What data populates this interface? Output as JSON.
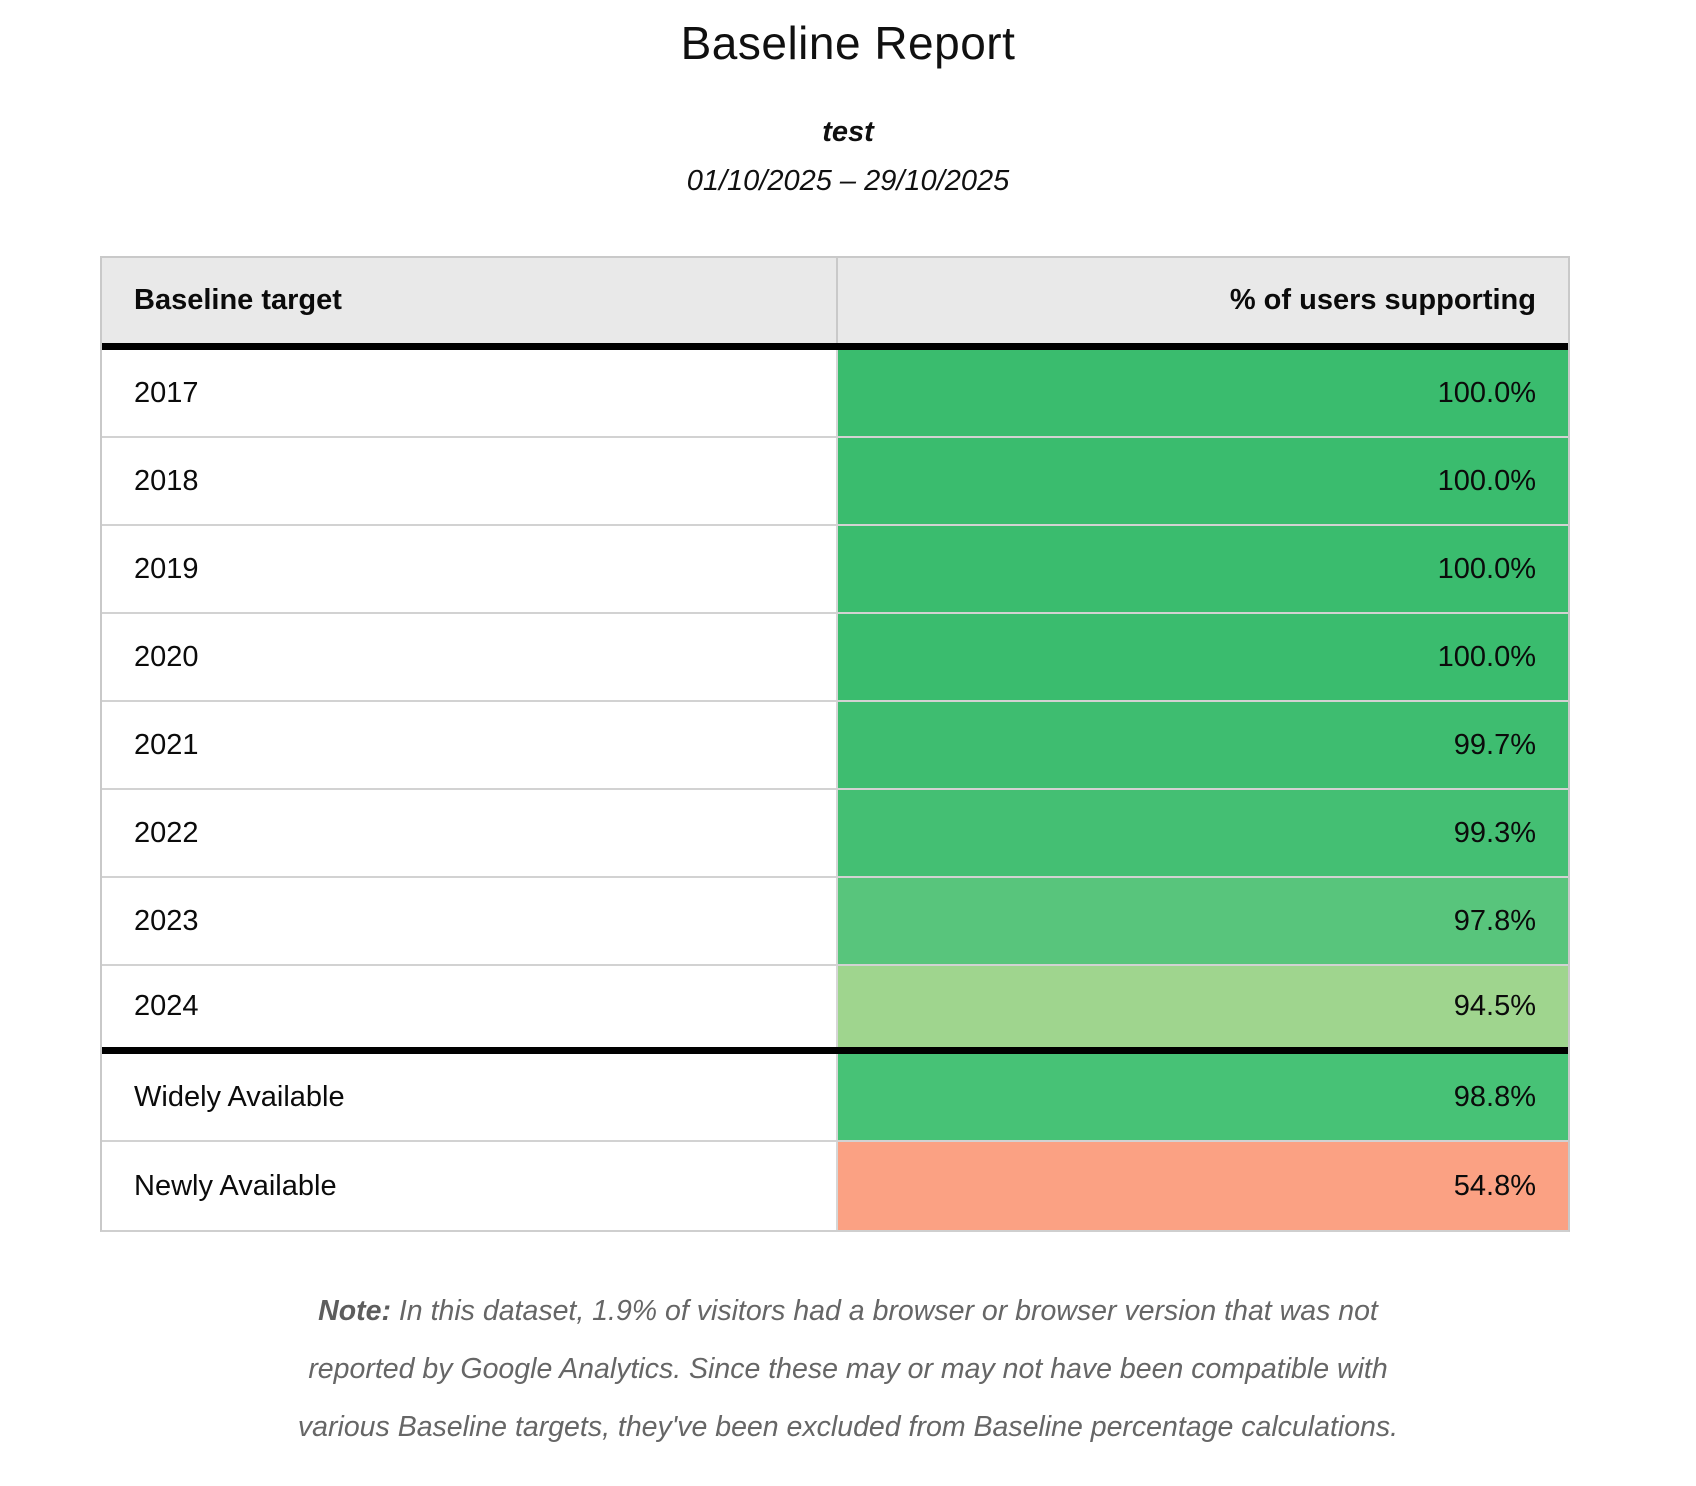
{
  "title": "Baseline Report",
  "subtitle": "test",
  "date_range": "01/10/2025 – 29/10/2025",
  "table": {
    "columns": [
      "Baseline target",
      "% of users supporting"
    ],
    "rows": [
      {
        "label": "2017",
        "value": "100.0%",
        "color": "#3abc6e"
      },
      {
        "label": "2018",
        "value": "100.0%",
        "color": "#3abc6e"
      },
      {
        "label": "2019",
        "value": "100.0%",
        "color": "#3abc6e"
      },
      {
        "label": "2020",
        "value": "100.0%",
        "color": "#3abc6e"
      },
      {
        "label": "2021",
        "value": "99.7%",
        "color": "#3ebd70"
      },
      {
        "label": "2022",
        "value": "99.3%",
        "color": "#44bf73"
      },
      {
        "label": "2023",
        "value": "97.8%",
        "color": "#58c57c"
      },
      {
        "label": "2024",
        "value": "94.5%",
        "color": "#9fd58e"
      },
      {
        "label": "Widely Available",
        "value": "98.8%",
        "color": "#47c276"
      },
      {
        "label": "Newly Available",
        "value": "54.8%",
        "color": "#fba183"
      }
    ]
  },
  "note": {
    "label": "Note:",
    "lines": [
      "In this dataset, 1.9% of visitors had a browser or browser version that was not",
      "reported by Google Analytics. Since these may or may not have been compatible with",
      "various Baseline targets, they've been excluded from Baseline percentage calculations."
    ]
  },
  "colors": {
    "header_background": "#e9e9e9",
    "section_divider": "#000000",
    "row_divider": "#d2d2d2",
    "green_full": "#3abc6e",
    "green_light": "#9fd58e",
    "salmon_low": "#fba183"
  }
}
